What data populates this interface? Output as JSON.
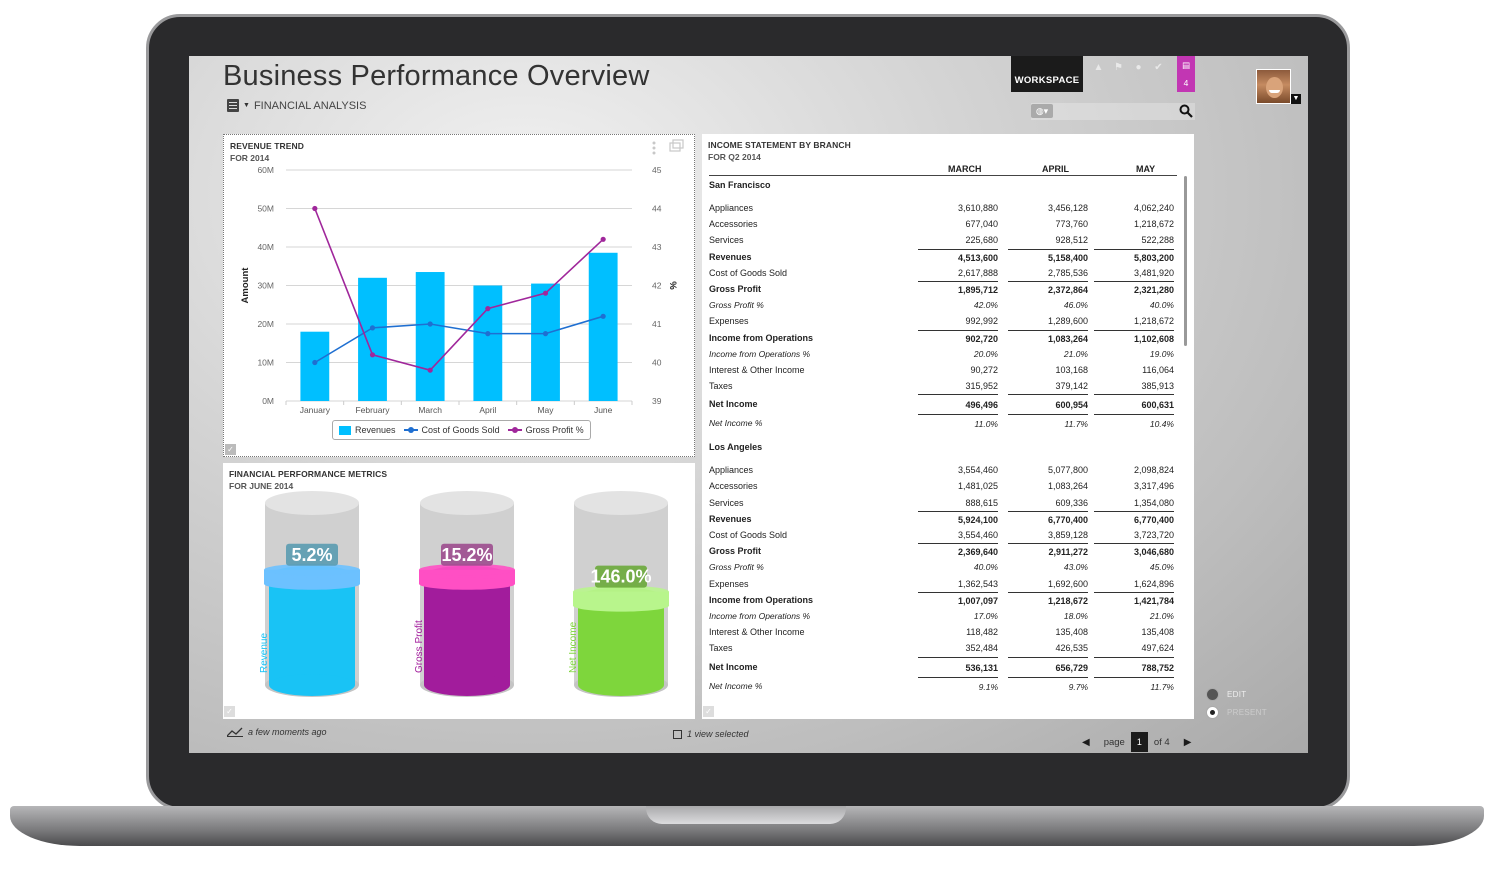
{
  "app": {
    "title": "Business Performance Overview",
    "subtitle": "FINANCIAL ANALYSIS",
    "workspace_label": "WORKSPACE",
    "chat_count": "4"
  },
  "revenue_panel": {
    "title": "REVENUE TREND",
    "subtitle": "FOR 2014",
    "legend": [
      "Revenues",
      "Cost of Goods Sold",
      "Gross Profit %"
    ]
  },
  "chart_data": {
    "type": "bar",
    "categories": [
      "January",
      "February",
      "March",
      "April",
      "May",
      "June"
    ],
    "series": [
      {
        "name": "Revenues",
        "type": "bar",
        "axis": "left",
        "values": [
          18,
          32,
          33.5,
          30,
          30.5,
          38.5
        ]
      },
      {
        "name": "Cost of Goods Sold",
        "type": "line",
        "axis": "left",
        "values": [
          10,
          19,
          20,
          17.5,
          17.5,
          22
        ]
      },
      {
        "name": "Gross Profit %",
        "type": "line",
        "axis": "right",
        "values": [
          44,
          40.2,
          39.8,
          41.4,
          41.8,
          43.2
        ]
      }
    ],
    "ylabel": "Amount",
    "ylabel_right": "%",
    "yticks": [
      "0M",
      "10M",
      "20M",
      "30M",
      "40M",
      "50M",
      "60M"
    ],
    "ylim": [
      0,
      60
    ],
    "yticks_right": [
      "39",
      "40",
      "41",
      "42",
      "43",
      "44",
      "45"
    ],
    "ylim_right": [
      39,
      45
    ],
    "colors": {
      "Revenues": "#00bfff",
      "Cost of Goods Sold": "#1f6fd1",
      "Gross Profit %": "#a0279b"
    },
    "legend_position": "bottom"
  },
  "metrics_panel": {
    "title": "FINANCIAL PERFORMANCE METRICS",
    "subtitle": "FOR JUNE 2014",
    "cylinders": [
      {
        "label": "Revenue",
        "value": "5.2%",
        "fill": 0.6,
        "color": "#19c3f5",
        "ring": "#6cc1ff",
        "badge": "#5a9bb0",
        "label_color": "#19c3f5"
      },
      {
        "label": "Gross Profit",
        "value": "15.2%",
        "fill": 0.6,
        "color": "#a21c9c",
        "ring": "#ff4fc4",
        "badge": "#9c4d8e",
        "label_color": "#a21c9c"
      },
      {
        "label": "Net Income",
        "value": "146.0%",
        "fill": 0.48,
        "color": "#7ed63c",
        "ring": "#b8f58c",
        "badge": "#6aa83a",
        "label_color": "#7ed63c"
      }
    ]
  },
  "income_panel": {
    "title": "INCOME STATEMENT BY BRANCH",
    "subtitle": "FOR Q2 2014",
    "columns": [
      "MARCH",
      "APRIL",
      "MAY"
    ],
    "rows": [
      {
        "style": "group",
        "label": "San Francisco",
        "values": [
          "",
          "",
          ""
        ]
      },
      {
        "style": "spacer",
        "label": "",
        "values": [
          "",
          "",
          ""
        ]
      },
      {
        "style": "normal",
        "label": "Appliances",
        "values": [
          "3,610,880",
          "3,456,128",
          "4,062,240"
        ]
      },
      {
        "style": "normal",
        "label": "Accessories",
        "values": [
          "677,040",
          "773,760",
          "1,218,672"
        ]
      },
      {
        "style": "normal",
        "label": "Services",
        "values": [
          "225,680",
          "928,512",
          "522,288"
        ]
      },
      {
        "style": "bold-top",
        "label": "Revenues",
        "values": [
          "4,513,600",
          "5,158,400",
          "5,803,200"
        ]
      },
      {
        "style": "normal",
        "label": "Cost of Goods Sold",
        "values": [
          "2,617,888",
          "2,785,536",
          "3,481,920"
        ]
      },
      {
        "style": "bold-top",
        "label": "Gross Profit",
        "values": [
          "1,895,712",
          "2,372,864",
          "2,321,280"
        ]
      },
      {
        "style": "italic",
        "label": "Gross Profit %",
        "values": [
          "42.0%",
          "46.0%",
          "40.0%"
        ]
      },
      {
        "style": "normal",
        "label": "Expenses",
        "values": [
          "992,992",
          "1,289,600",
          "1,218,672"
        ]
      },
      {
        "style": "bold-top",
        "label": "Income from Operations",
        "values": [
          "902,720",
          "1,083,264",
          "1,102,608"
        ]
      },
      {
        "style": "italic",
        "label": "Income from Operations %",
        "values": [
          "20.0%",
          "21.0%",
          "19.0%"
        ]
      },
      {
        "style": "normal",
        "label": "Interest & Other Income",
        "values": [
          "90,272",
          "103,168",
          "116,064"
        ]
      },
      {
        "style": "normal",
        "label": "Taxes",
        "values": [
          "315,952",
          "379,142",
          "385,913"
        ]
      },
      {
        "style": "bold-top-tall",
        "label": "Net Income",
        "values": [
          "496,496",
          "600,954",
          "600,631"
        ]
      },
      {
        "style": "italic-top",
        "label": "Net Income %",
        "values": [
          "11.0%",
          "11.7%",
          "10.4%"
        ]
      },
      {
        "style": "spacer",
        "label": "",
        "values": [
          "",
          "",
          ""
        ]
      },
      {
        "style": "group",
        "label": "Los Angeles",
        "values": [
          "",
          "",
          ""
        ]
      },
      {
        "style": "spacer",
        "label": "",
        "values": [
          "",
          "",
          ""
        ]
      },
      {
        "style": "normal",
        "label": "Appliances",
        "values": [
          "3,554,460",
          "5,077,800",
          "2,098,824"
        ]
      },
      {
        "style": "normal",
        "label": "Accessories",
        "values": [
          "1,481,025",
          "1,083,264",
          "3,317,496"
        ]
      },
      {
        "style": "normal",
        "label": "Services",
        "values": [
          "888,615",
          "609,336",
          "1,354,080"
        ]
      },
      {
        "style": "bold-top",
        "label": "Revenues",
        "values": [
          "5,924,100",
          "6,770,400",
          "6,770,400"
        ]
      },
      {
        "style": "normal",
        "label": "Cost of Goods Sold",
        "values": [
          "3,554,460",
          "3,859,128",
          "3,723,720"
        ]
      },
      {
        "style": "bold-top",
        "label": "Gross Profit",
        "values": [
          "2,369,640",
          "2,911,272",
          "3,046,680"
        ]
      },
      {
        "style": "italic",
        "label": "Gross Profit %",
        "values": [
          "40.0%",
          "43.0%",
          "45.0%"
        ]
      },
      {
        "style": "normal",
        "label": "Expenses",
        "values": [
          "1,362,543",
          "1,692,600",
          "1,624,896"
        ]
      },
      {
        "style": "bold-top",
        "label": "Income from Operations",
        "values": [
          "1,007,097",
          "1,218,672",
          "1,421,784"
        ]
      },
      {
        "style": "italic",
        "label": "Income from Operations %",
        "values": [
          "17.0%",
          "18.0%",
          "21.0%"
        ]
      },
      {
        "style": "normal",
        "label": "Interest & Other Income",
        "values": [
          "118,482",
          "135,408",
          "135,408"
        ]
      },
      {
        "style": "normal",
        "label": "Taxes",
        "values": [
          "352,484",
          "426,535",
          "497,624"
        ]
      },
      {
        "style": "bold-top-tall",
        "label": "Net Income",
        "values": [
          "536,131",
          "656,729",
          "788,752"
        ]
      },
      {
        "style": "italic-top",
        "label": "Net Income %",
        "values": [
          "9.1%",
          "9.7%",
          "11.7%"
        ]
      }
    ]
  },
  "footer": {
    "updated": "a few moments ago",
    "selection": "1 view selected",
    "page_label": "page",
    "page_current": "1",
    "page_of": "of 4",
    "mode_edit": "EDIT",
    "mode_present": "PRESENT"
  }
}
